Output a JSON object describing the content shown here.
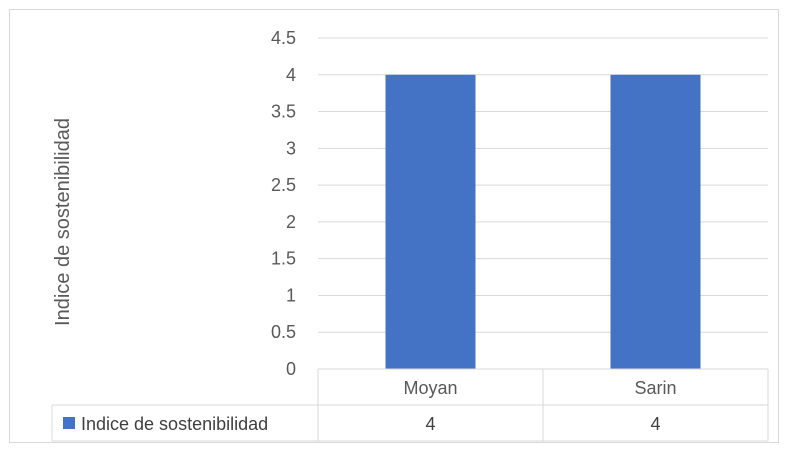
{
  "chart_data": {
    "type": "bar",
    "title": "",
    "xlabel": "",
    "ylabel": "Indice de sostenibilidad",
    "categories": [
      "Moyan",
      "Sarin"
    ],
    "series": [
      {
        "name": "Indice de sostenibilidad",
        "values": [
          4,
          4
        ],
        "color": "#4472C4"
      }
    ],
    "ylim": [
      0,
      4.5
    ],
    "yticks": [
      "0",
      "0.5",
      "1",
      "1.5",
      "2",
      "2.5",
      "3",
      "3.5",
      "4",
      "4.5"
    ],
    "grid": true,
    "legend": "data-table",
    "data_table": {
      "row_label": "Indice de sostenibilidad",
      "cells": [
        "4",
        "4"
      ]
    }
  }
}
